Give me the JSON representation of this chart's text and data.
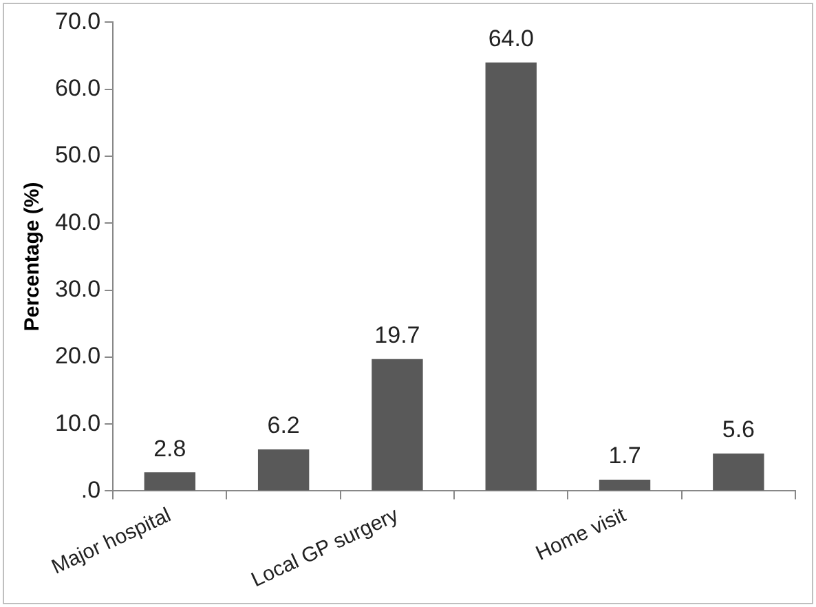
{
  "chart_data": {
    "type": "bar",
    "ylabel": "Percentage (%)",
    "categories": [
      "Major hospital",
      null,
      "Local GP surgery",
      null,
      "Home visit",
      null
    ],
    "values": [
      2.8,
      6.2,
      19.7,
      64.0,
      1.7,
      5.6
    ],
    "color": "#595959",
    "ylim": [
      0,
      70
    ],
    "yticks": [
      {
        "value": 0,
        "label": ".0"
      },
      {
        "value": 10,
        "label": "10.0"
      },
      {
        "value": 20,
        "label": "20.0"
      },
      {
        "value": 30,
        "label": "30.0"
      },
      {
        "value": 40,
        "label": "40.0"
      },
      {
        "value": 50,
        "label": "50.0"
      },
      {
        "value": 60,
        "label": "60.0"
      },
      {
        "value": 70,
        "label": "70.0"
      }
    ],
    "value_labels": [
      "2.8",
      "6.2",
      "19.7",
      "64.0",
      "1.7",
      "5.6"
    ]
  }
}
